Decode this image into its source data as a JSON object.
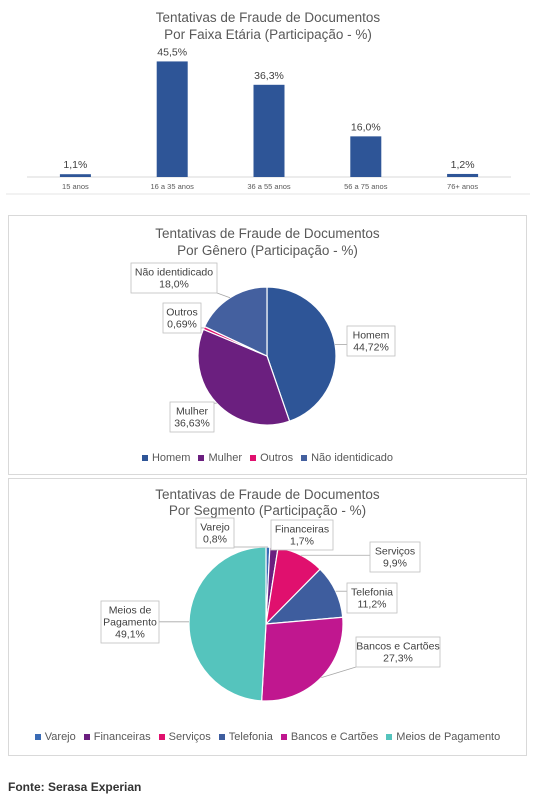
{
  "source_note": "Fonte: Serasa Experian",
  "chart_data": [
    {
      "id": "age",
      "type": "bar",
      "title_lines": [
        "Tentativas de Fraude de Documentos",
        "Por Faixa Etária (Participação - %)"
      ],
      "categories": [
        "15 anos",
        "16 a 35 anos",
        "36 a 55 anos",
        "56 a 75 anos",
        "76+ anos"
      ],
      "values": [
        1.1,
        45.5,
        36.3,
        16.0,
        1.2
      ],
      "value_labels": [
        "1,1%",
        "45,5%",
        "36,3%",
        "16,0%",
        "1,2%"
      ],
      "ylim": [
        0,
        50
      ],
      "color": "#2e5597"
    },
    {
      "id": "gender",
      "type": "pie",
      "title_lines": [
        "Tentativas de Fraude de Documentos",
        "Por Gênero (Participação - %)"
      ],
      "labels": [
        "Homem",
        "Mulher",
        "Outros",
        "Não identidicado"
      ],
      "values": [
        44.72,
        36.63,
        0.69,
        18.0
      ],
      "slice_labels": [
        [
          "Homem",
          "44,72%"
        ],
        [
          "Mulher",
          "36,63%"
        ],
        [
          "Outros",
          "0,69%"
        ],
        [
          "Não identidicado",
          "18,0%"
        ]
      ],
      "colors": [
        "#2e5597",
        "#6b1f7f",
        "#e0106e",
        "#44609f"
      ]
    },
    {
      "id": "segment",
      "type": "pie",
      "title_lines": [
        "Tentativas de Fraude de Documentos",
        "Por Segmento (Participação - %)"
      ],
      "labels": [
        "Varejo",
        "Financeiras",
        "Serviços",
        "Telefonia",
        "Bancos e Cartões",
        "Meios de Pagamento"
      ],
      "values": [
        0.8,
        1.7,
        9.9,
        11.2,
        27.3,
        49.1
      ],
      "slice_labels": [
        [
          "Varejo",
          "0,8%"
        ],
        [
          "Financeiras",
          "1,7%"
        ],
        [
          "Serviços",
          "9,9%"
        ],
        [
          "Telefonia",
          "11,2%"
        ],
        [
          "Bancos e Cartões",
          "27,3%"
        ],
        [
          "Meios de",
          "Pagamento",
          "49,1%"
        ]
      ],
      "colors": [
        "#3a6bb5",
        "#6b1f7f",
        "#e0106e",
        "#3e5d9e",
        "#c0178f",
        "#55c4bd"
      ]
    }
  ]
}
